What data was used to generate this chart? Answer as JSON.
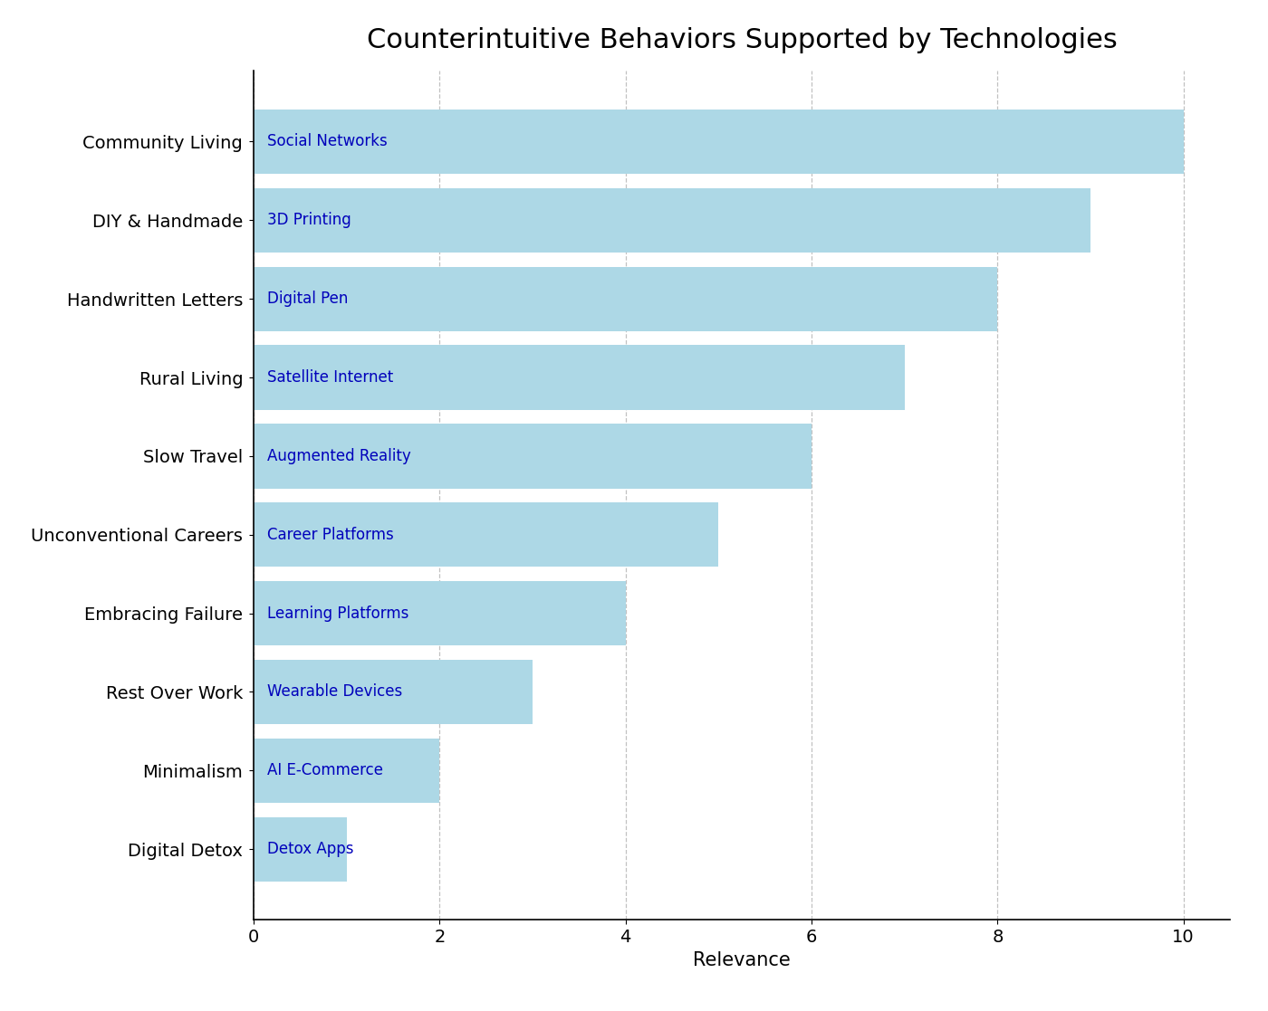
{
  "title": "Counterintuitive Behaviors Supported by Technologies",
  "categories": [
    "Digital Detox",
    "Minimalism",
    "Rest Over Work",
    "Embracing Failure",
    "Unconventional Careers",
    "Slow Travel",
    "Rural Living",
    "Handwritten Letters",
    "DIY & Handmade",
    "Community Living"
  ],
  "values": [
    1,
    2,
    3,
    4,
    5,
    6,
    7,
    8,
    9,
    10
  ],
  "tech_labels": [
    "Detox Apps",
    "AI E-Commerce",
    "Wearable Devices",
    "Learning Platforms",
    "Career Platforms",
    "Augmented Reality",
    "Satellite Internet",
    "Digital Pen",
    "3D Printing",
    "Social Networks"
  ],
  "bar_color": "#add8e6",
  "label_color": "#0000bb",
  "xlabel": "Relevance",
  "xlim": [
    0,
    10.5
  ],
  "xticks": [
    0,
    2,
    4,
    6,
    8,
    10
  ],
  "title_fontsize": 22,
  "label_fontsize": 12,
  "tick_fontsize": 14,
  "xlabel_fontsize": 15,
  "background_color": "#ffffff",
  "grid_color": "#999999",
  "bar_height": 0.82
}
